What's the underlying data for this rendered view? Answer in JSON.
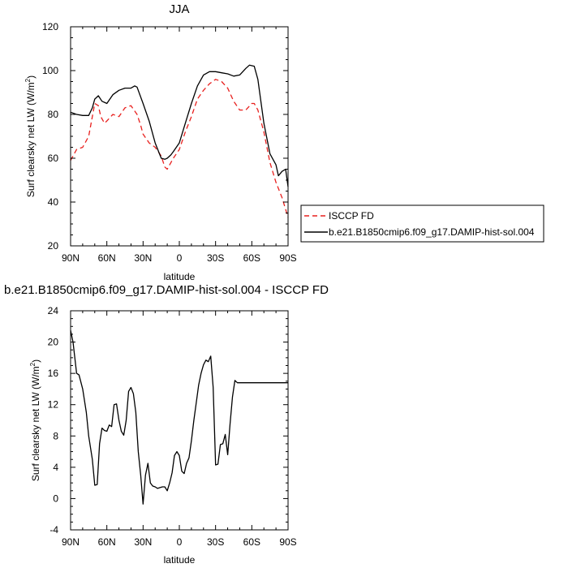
{
  "chart_data": [
    {
      "type": "line",
      "title": "JJA",
      "xlabel": "latitude",
      "ylabel": "Surf clearsky net LW (W/m",
      "ylabel_sup": "2",
      "ylabel_close": ")",
      "xlim": [
        90,
        -90
      ],
      "ylim": [
        20,
        120
      ],
      "xticks": [
        90,
        60,
        30,
        0,
        -30,
        -60,
        -90
      ],
      "xtick_labels": [
        "90N",
        "60N",
        "30N",
        "0",
        "30S",
        "60S",
        "90S"
      ],
      "yticks": [
        20,
        40,
        60,
        80,
        100,
        120
      ],
      "ytick_labels": [
        "20",
        "40",
        "60",
        "80",
        "100",
        "120"
      ],
      "legend_position": "right of plot, bottom",
      "series": [
        {
          "name": "ISCCP FD",
          "color": "#e8201e",
          "dash": "dashed",
          "x": [
            90,
            85,
            80,
            75,
            70,
            67,
            65,
            62,
            60,
            55,
            50,
            45,
            40,
            35,
            32,
            30,
            25,
            20,
            15,
            12,
            10,
            7,
            5,
            0,
            -5,
            -10,
            -15,
            -20,
            -25,
            -30,
            -35,
            -40,
            -45,
            -50,
            -55,
            -60,
            -62,
            -65,
            -70,
            -75,
            -80,
            -85,
            -90
          ],
          "y": [
            59,
            64,
            65,
            70,
            85,
            84,
            79,
            76,
            77,
            80,
            79,
            83,
            84,
            80,
            75,
            71,
            67,
            65,
            61,
            56,
            55,
            58,
            60,
            64,
            72,
            79,
            87,
            91,
            94,
            96,
            95,
            92,
            86,
            82,
            82,
            85,
            85,
            82,
            72,
            58,
            49,
            42,
            33
          ]
        },
        {
          "name": "b.e21.B1850cmip6.f09_g17.DAMIP-hist-sol.004",
          "color": "#000000",
          "dash": "solid",
          "x": [
            90,
            85,
            80,
            75,
            72,
            70,
            67,
            64,
            60,
            55,
            50,
            45,
            40,
            37,
            35,
            30,
            25,
            20,
            15,
            12,
            10,
            7,
            5,
            0,
            -5,
            -10,
            -15,
            -20,
            -25,
            -30,
            -35,
            -40,
            -45,
            -50,
            -55,
            -58,
            -62,
            -65,
            -70,
            -75,
            -80,
            -82,
            -85,
            -88,
            -90
          ],
          "y": [
            81,
            80,
            79.5,
            79.5,
            83,
            87,
            88.5,
            86,
            85,
            89,
            91,
            92,
            92,
            93,
            92.5,
            85,
            77,
            67,
            60,
            59.5,
            60,
            61.5,
            63,
            67,
            76,
            85,
            93,
            98,
            99.5,
            99.5,
            99,
            98.5,
            97.5,
            98,
            101,
            102.5,
            102,
            96,
            76,
            62,
            57,
            52,
            54,
            55,
            47
          ]
        }
      ]
    },
    {
      "type": "line",
      "title": "b.e21.B1850cmip6.f09_g17.DAMIP-hist-sol.004 - ISCCP FD",
      "xlabel": "latitude",
      "ylabel": "Surf clearsky net LW (W/m",
      "ylabel_sup": "2",
      "ylabel_close": ")",
      "xlim": [
        90,
        -90
      ],
      "ylim": [
        -4,
        24
      ],
      "xticks": [
        90,
        60,
        30,
        0,
        -30,
        -60,
        -90
      ],
      "xtick_labels": [
        "90N",
        "60N",
        "30N",
        "0",
        "30S",
        "60S",
        "90S"
      ],
      "yticks": [
        -4,
        0,
        4,
        8,
        12,
        16,
        20,
        24
      ],
      "ytick_labels": [
        "-4",
        "0",
        "4",
        "8",
        "12",
        "16",
        "20",
        "24"
      ],
      "series": [
        {
          "color": "#000000",
          "dash": "solid",
          "x": [
            90,
            88,
            85,
            83,
            80,
            77,
            75,
            72,
            70,
            68,
            66,
            64,
            62,
            60,
            58,
            56,
            54,
            52,
            50,
            48,
            46,
            44,
            42,
            40,
            38,
            36,
            34,
            32,
            30,
            28,
            26,
            24,
            22,
            20,
            18,
            16,
            14,
            12,
            10,
            8,
            6,
            4,
            2,
            0,
            -2,
            -4,
            -6,
            -8,
            -10,
            -12,
            -14,
            -16,
            -18,
            -20,
            -22,
            -24,
            -26,
            -28,
            -30,
            -32,
            -34,
            -36,
            -38,
            -40,
            -42,
            -44,
            -46,
            -48,
            -50,
            -52,
            -54,
            -56,
            -58,
            -60,
            -62,
            -64,
            -66,
            -68,
            -70,
            -72,
            -74,
            -76,
            -78,
            -80,
            -82,
            -84,
            -86,
            -88,
            -90
          ],
          "y": [
            21.5,
            20,
            16,
            15.8,
            14,
            11,
            8,
            5,
            1.7,
            1.8,
            7,
            9,
            8.7,
            8.6,
            9.4,
            9.2,
            12,
            12.1,
            10,
            8.6,
            8.1,
            10,
            13.7,
            14.2,
            13.4,
            11,
            6,
            3,
            -0.7,
            3,
            4.5,
            2,
            1.6,
            1.5,
            1.3,
            1.4,
            1.5,
            1.5,
            1,
            2,
            3.3,
            5.5,
            6,
            5.5,
            3.5,
            3.2,
            4.5,
            5.2,
            7.4,
            10,
            12.2,
            14.5,
            16,
            17.1,
            17.7,
            17.5,
            18.2,
            14.2,
            4.3,
            4.4,
            6.9,
            7,
            8.2,
            5.6,
            9.5,
            13,
            15.1,
            14.8,
            14.8,
            14.8,
            14.8,
            14.8,
            14.8,
            14.8,
            14.8,
            14.8,
            14.8,
            14.8,
            14.8,
            14.8,
            14.8,
            14.8,
            14.8,
            14.8,
            14.8,
            14.8,
            14.8,
            14.8,
            14.8
          ]
        }
      ]
    }
  ]
}
